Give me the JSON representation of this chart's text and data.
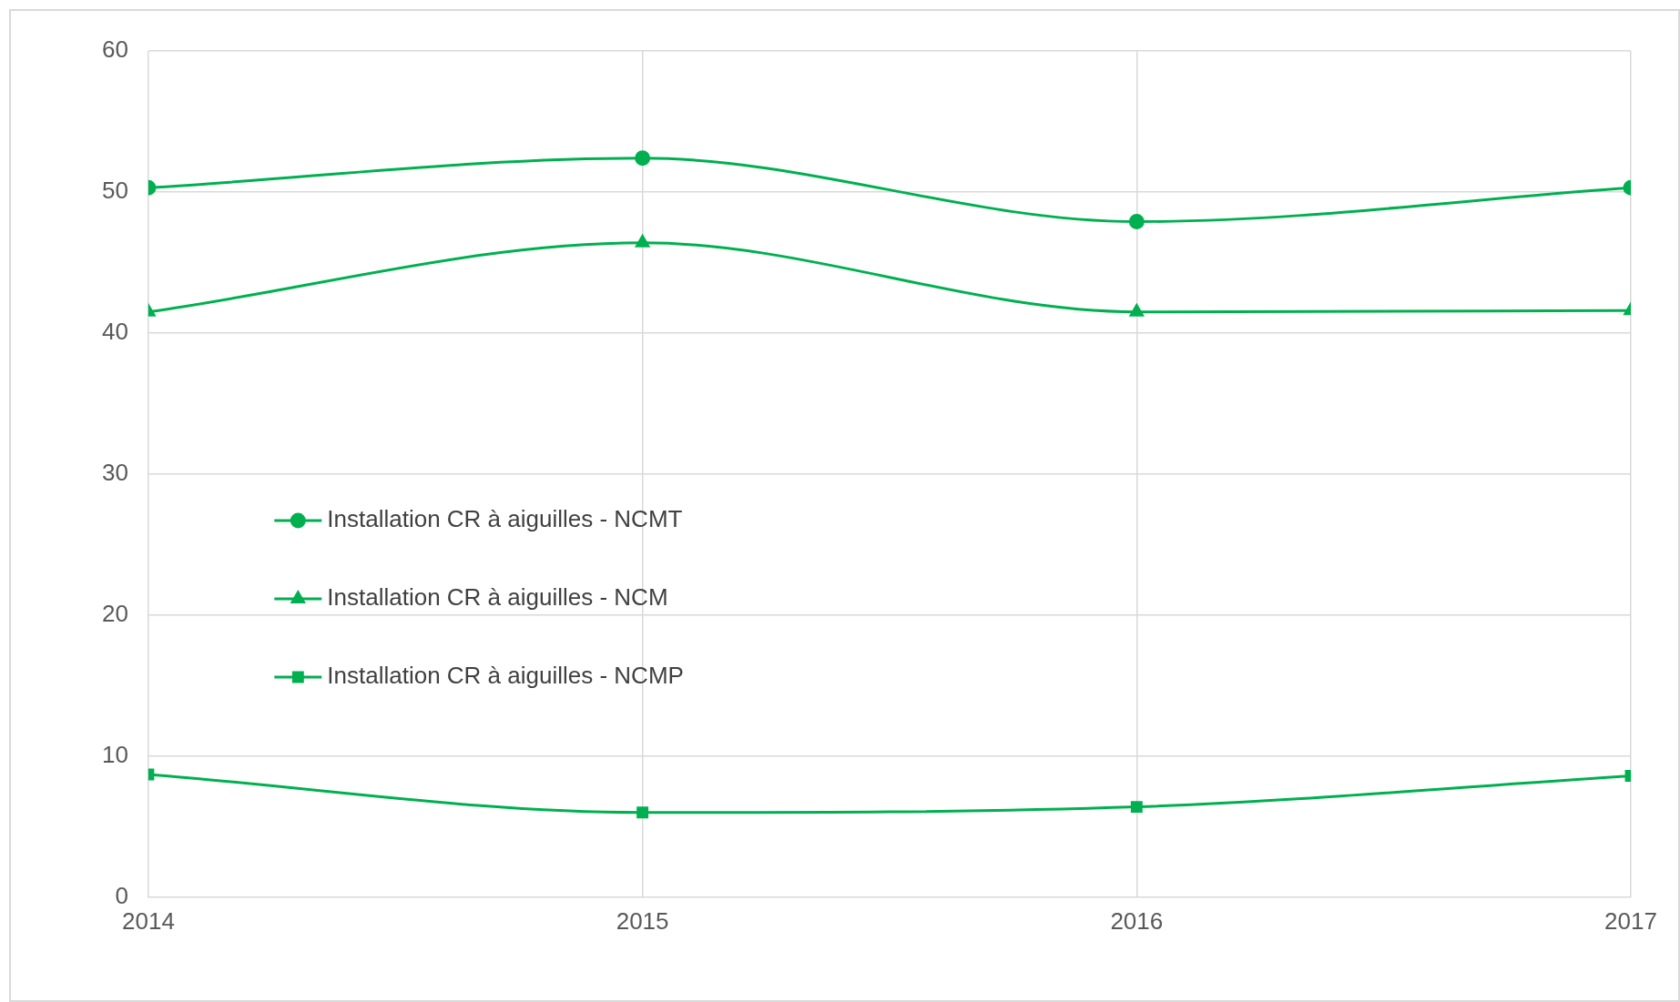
{
  "chart_data": {
    "type": "line",
    "x": [
      2014,
      2015,
      2016,
      2017
    ],
    "xlim": [
      2014,
      2017
    ],
    "xticks": [
      2014,
      2015,
      2016,
      2017
    ],
    "ylim": [
      0,
      60
    ],
    "yticks": [
      0,
      10,
      20,
      30,
      40,
      50,
      60
    ],
    "grid": true,
    "legend": "left",
    "series": [
      {
        "name": "Installation CR à aiguilles - NCMT",
        "color": "#00b050",
        "marker": "circle",
        "values": [
          50.3,
          52.4,
          47.9,
          50.3
        ]
      },
      {
        "name": "Installation CR à aiguilles - NCM",
        "color": "#00b050",
        "marker": "triangle",
        "values": [
          41.5,
          46.4,
          41.5,
          41.6
        ]
      },
      {
        "name": "Installation CR à aiguilles - NCMP",
        "color": "#00b050",
        "marker": "square",
        "values": [
          8.7,
          6.0,
          6.4,
          8.6
        ]
      }
    ]
  }
}
